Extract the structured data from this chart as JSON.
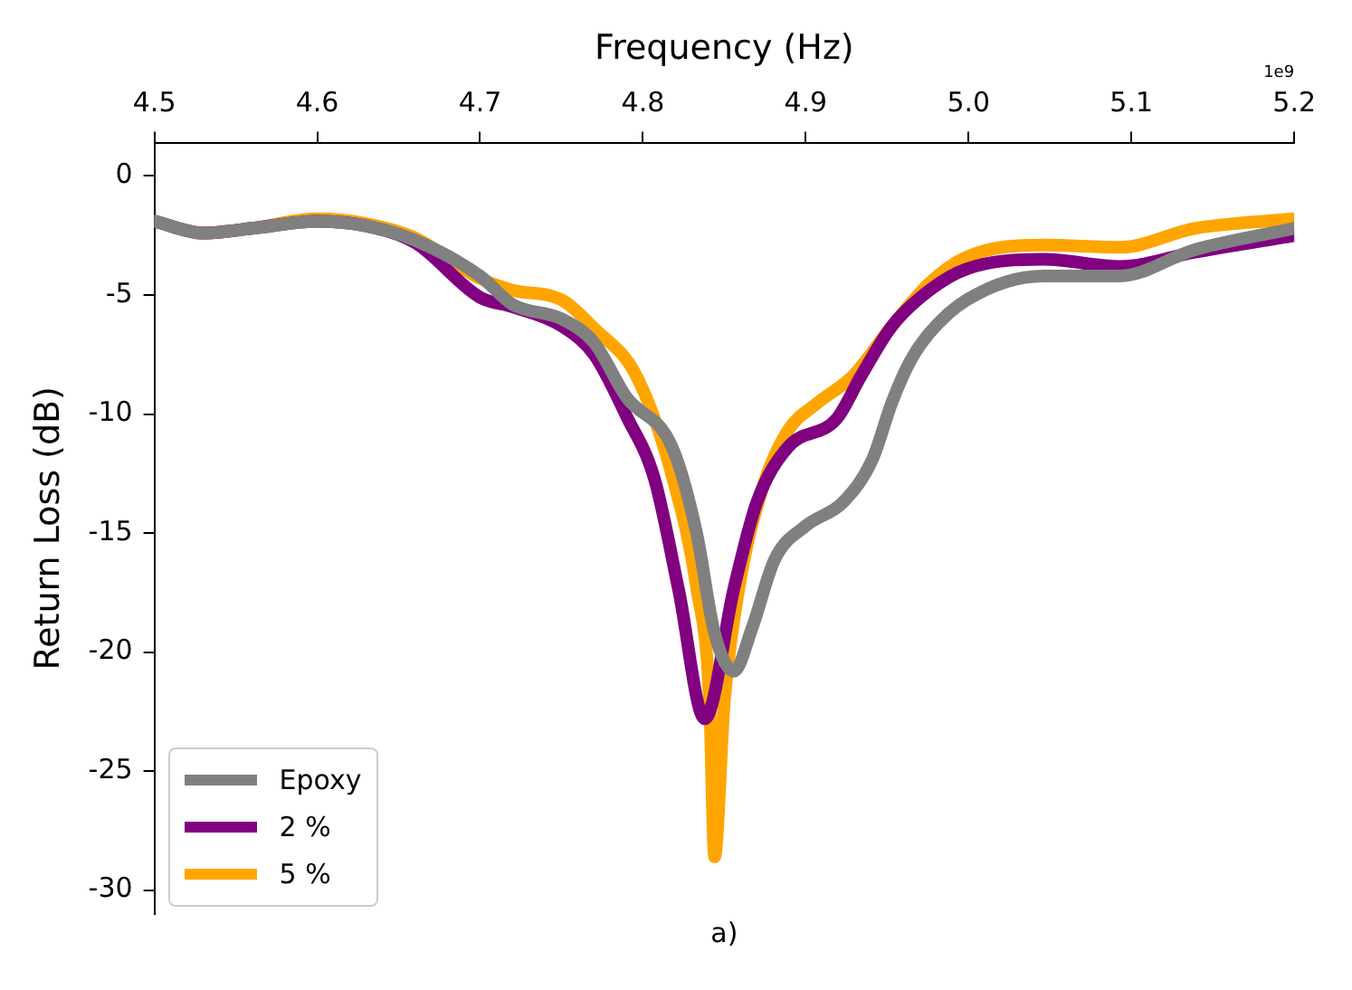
{
  "chart_data": {
    "type": "line",
    "xlabel": "Frequency (Hz)",
    "ylabel": "Return Loss (dB)",
    "annotations": [
      "1e9",
      "a)"
    ],
    "xlim": [
      4.5,
      5.2
    ],
    "xticks": [
      4.5,
      4.6,
      4.7,
      4.8,
      4.9,
      {
        "value": 5,
        "label": "5.0"
      },
      5.1,
      5.2
    ],
    "ylim": [
      -31,
      1.4
    ],
    "yticks": [
      -30,
      -25,
      -20,
      -15,
      -10,
      -5,
      0
    ],
    "grid": false,
    "legend": "bottom left",
    "line_style": "solid",
    "series": [
      {
        "name": "Epoxy",
        "color": "#808080",
        "x": [
          4.5,
          4.53,
          4.56,
          4.6,
          4.63,
          4.66,
          4.7,
          4.72,
          4.75,
          4.77,
          4.79,
          4.818,
          4.833,
          4.844,
          4.856,
          4.867,
          4.881,
          4.9,
          4.923,
          4.941,
          4.953,
          4.964,
          4.976,
          4.999,
          5.046,
          5.093,
          5.139,
          5.2
        ],
        "values": [
          -1.9,
          -2.4,
          -2.2,
          -1.9,
          -2.1,
          -2.7,
          -4.2,
          -5.4,
          -6.0,
          -7.0,
          -9.3,
          -11.4,
          -15,
          -19.2,
          -20.8,
          -19.0,
          -16.1,
          -14.7,
          -13.7,
          -11.9,
          -9.5,
          -7.8,
          -6.6,
          -5.2,
          -4.2,
          -4.2,
          -3.1,
          -2.2
        ]
      },
      {
        "name": "2 %",
        "color": "#800080",
        "x": [
          4.5,
          4.53,
          4.56,
          4.6,
          4.63,
          4.66,
          4.7,
          4.72,
          4.75,
          4.77,
          4.79,
          4.807,
          4.822,
          4.838,
          4.856,
          4.87,
          4.889,
          4.919,
          4.934,
          4.953,
          4.976,
          4.999,
          5.046,
          5.093,
          5.139,
          5.2
        ],
        "values": [
          -1.9,
          -2.4,
          -2.2,
          -1.9,
          -2.1,
          -2.8,
          -5.1,
          -5.5,
          -6.3,
          -7.5,
          -10.1,
          -12.7,
          -17.4,
          -22.8,
          -17.3,
          -13.7,
          -11.4,
          -10.2,
          -8.4,
          -6.3,
          -4.8,
          -3.9,
          -3.5,
          -3.8,
          -3.2,
          -2.5
        ]
      },
      {
        "name": "5 %",
        "color": "#ffa500",
        "x": [
          4.5,
          4.53,
          4.56,
          4.6,
          4.63,
          4.66,
          4.7,
          4.72,
          4.75,
          4.77,
          4.796,
          4.818,
          4.833,
          4.841,
          4.844,
          4.85,
          4.859,
          4.874,
          4.889,
          4.906,
          4.929,
          4.953,
          4.976,
          4.999,
          5.046,
          5.093,
          5.139,
          5.2
        ],
        "values": [
          -1.9,
          -2.4,
          -2.2,
          -1.8,
          -2.0,
          -2.6,
          -4.3,
          -4.8,
          -5.2,
          -6.4,
          -8.4,
          -12.6,
          -17.3,
          -22.1,
          -28.6,
          -22.1,
          -17.3,
          -13.0,
          -10.7,
          -9.6,
          -8.4,
          -6.3,
          -4.5,
          -3.4,
          -2.9,
          -3.0,
          -2.2,
          -1.8
        ]
      }
    ]
  }
}
